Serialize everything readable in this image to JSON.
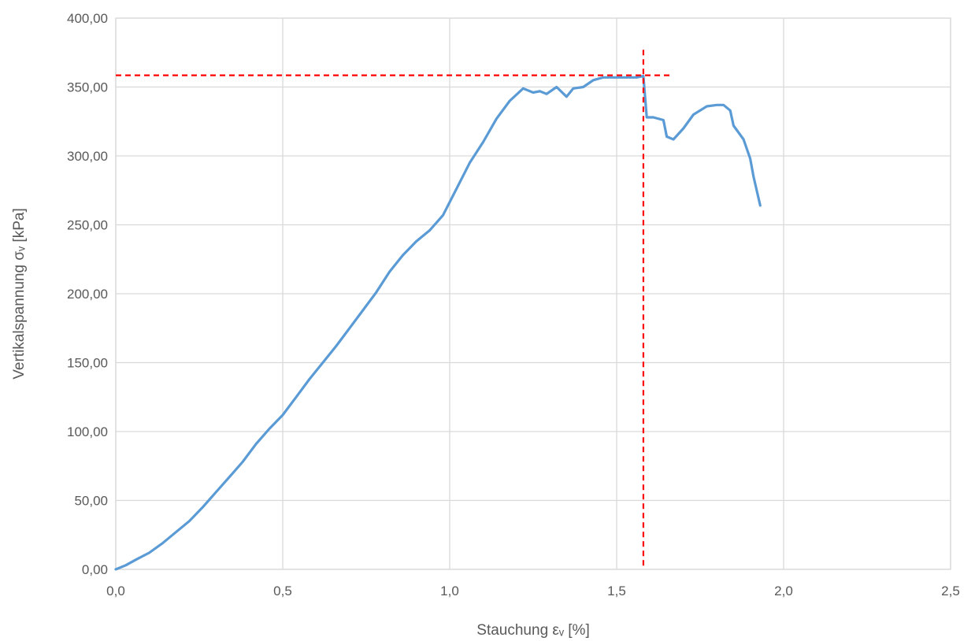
{
  "chart_data": {
    "type": "line",
    "xlabel": "Stauchung εᵥ [%]",
    "ylabel": "Vertikalspannung σᵥ [kPa]",
    "xlim": [
      0,
      2.5
    ],
    "ylim": [
      0,
      400
    ],
    "x_ticks": [
      "0,0",
      "0,5",
      "1,0",
      "1,5",
      "2,0",
      "2,5"
    ],
    "y_ticks": [
      "0,00",
      "50,00",
      "100,00",
      "150,00",
      "200,00",
      "250,00",
      "300,00",
      "350,00",
      "400,00"
    ],
    "grid": true,
    "series": [
      {
        "color": "#5b9bd5",
        "x": [
          0.0,
          0.03,
          0.06,
          0.1,
          0.14,
          0.18,
          0.22,
          0.26,
          0.3,
          0.34,
          0.38,
          0.42,
          0.46,
          0.5,
          0.54,
          0.58,
          0.62,
          0.66,
          0.7,
          0.74,
          0.78,
          0.82,
          0.86,
          0.9,
          0.94,
          0.98,
          1.02,
          1.06,
          1.1,
          1.14,
          1.18,
          1.22,
          1.25,
          1.27,
          1.29,
          1.32,
          1.35,
          1.37,
          1.4,
          1.43,
          1.46,
          1.5,
          1.53,
          1.56,
          1.58,
          1.59,
          1.61,
          1.64,
          1.65,
          1.67,
          1.7,
          1.73,
          1.77,
          1.8,
          1.82,
          1.84,
          1.85,
          1.88,
          1.9,
          1.91,
          1.93
        ],
        "y": [
          0,
          3,
          7,
          12,
          19,
          27,
          35,
          45,
          56,
          67,
          78,
          91,
          102,
          112,
          125,
          138,
          150,
          162,
          175,
          188,
          201,
          216,
          228,
          238,
          246,
          257,
          276,
          295,
          310,
          327,
          340,
          349,
          346,
          347,
          345,
          350,
          343,
          349,
          350,
          355,
          357,
          357,
          357,
          357,
          358,
          328,
          328,
          326,
          314,
          312,
          320,
          330,
          336,
          337,
          337,
          333,
          322,
          312,
          298,
          285,
          264
        ]
      }
    ],
    "reference_lines": {
      "color": "#ff0000",
      "peak_x": 1.58,
      "peak_y": 358.5,
      "horizontal_to_x": 1.66,
      "vertical_top_y": 377
    }
  }
}
